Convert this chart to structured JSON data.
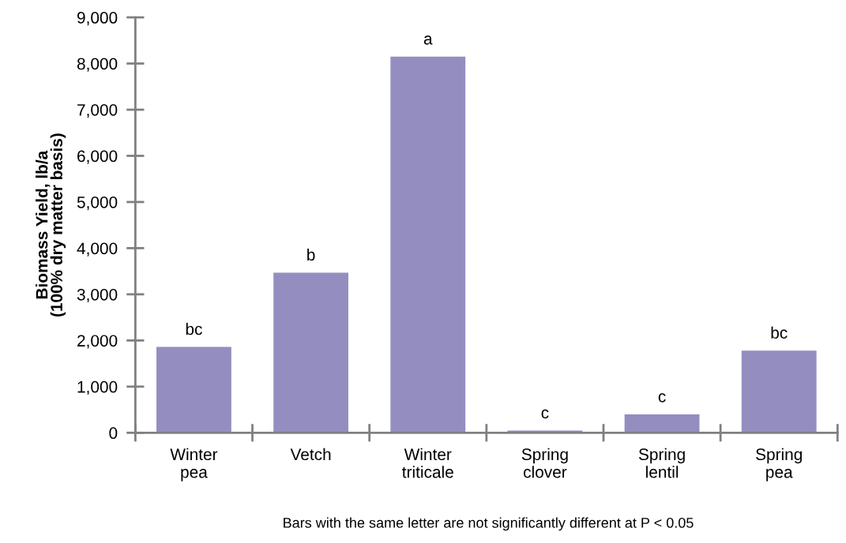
{
  "chart_data": {
    "type": "bar",
    "ylabel": "Biomass Yield, lb/a\n(100% dry matter basis)",
    "categories": [
      "Winter\npea",
      "Vetch",
      "Winter\ntriticale",
      "Spring\nclover",
      "Spring\nlentil",
      "Spring\npea"
    ],
    "values": [
      1860,
      3470,
      8150,
      50,
      400,
      1780
    ],
    "color": "#948ec0",
    "ylim": [
      0,
      9000
    ],
    "yticks": [
      {
        "value": 0,
        "label": "0"
      },
      {
        "value": 1000,
        "label": "1,000"
      },
      {
        "value": 2000,
        "label": "2,000"
      },
      {
        "value": 3000,
        "label": "3,000"
      },
      {
        "value": 4000,
        "label": "4,000"
      },
      {
        "value": 5000,
        "label": "5,000"
      },
      {
        "value": 6000,
        "label": "6,000"
      },
      {
        "value": 7000,
        "label": "7,000"
      },
      {
        "value": 8000,
        "label": "8,000"
      },
      {
        "value": 9000,
        "label": "9,000"
      }
    ],
    "grid": false,
    "legend": false,
    "annotations": [
      {
        "text": "bc",
        "x": "Winter\npea",
        "y": 1860
      },
      {
        "text": "b",
        "x": "Vetch",
        "y": 3470
      },
      {
        "text": "a",
        "x": "Winter\ntriticale",
        "y": 8150
      },
      {
        "text": "c",
        "x": "Spring\nclover",
        "y": 50
      },
      {
        "text": "c",
        "x": "Spring\nlentil",
        "y": 400
      },
      {
        "text": "bc",
        "x": "Spring\npea",
        "y": 1780
      },
      "Bars with the same letter are not significantly different at P < 0.05"
    ]
  }
}
